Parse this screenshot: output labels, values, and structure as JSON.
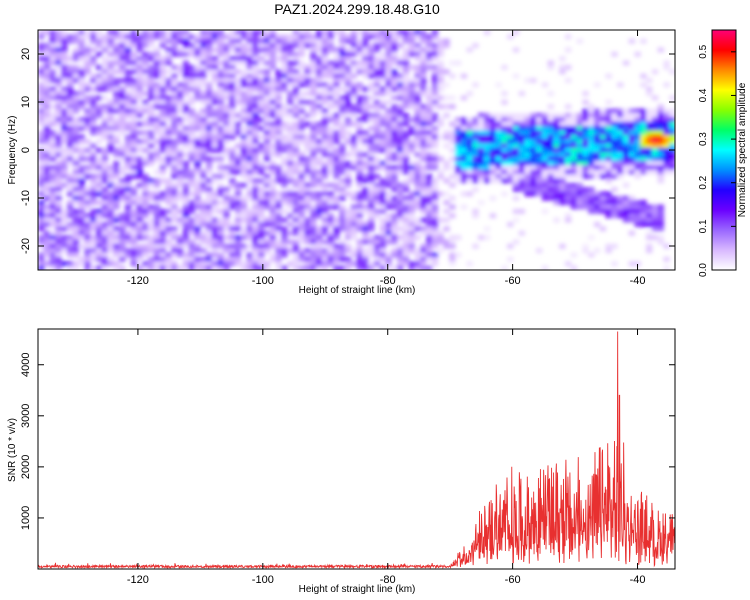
{
  "chart_data": [
    {
      "type": "heatmap",
      "title": "PAZ1.2024.299.18.48.G10",
      "xlabel": "Height of straight line (km)",
      "ylabel": "Frequency (Hz)",
      "xlim": [
        -136,
        -34
      ],
      "ylim": [
        -25,
        25
      ],
      "xticks": [
        "-120",
        "-100",
        "-80",
        "-60",
        "-40"
      ],
      "yticks": [
        "20",
        "10",
        "0",
        "-10",
        "-20"
      ],
      "colorbar": {
        "label": "Normalized spectral amplitude",
        "range": [
          0.0,
          0.55
        ],
        "ticks": [
          "0.0",
          "0.1",
          "0.2",
          "0.3",
          "0.4",
          "0.5"
        ],
        "colors": [
          "#ffffff",
          "#d8b8ff",
          "#9966ff",
          "#6a00ff",
          "#2200ff",
          "#0090ff",
          "#00ffff",
          "#00ff66",
          "#88ff00",
          "#ffff00",
          "#ff8800",
          "#ff0000",
          "#ff0077"
        ]
      },
      "regions": [
        {
          "name": "noise",
          "x": [
            -136,
            -70
          ],
          "y": [
            -25,
            25
          ],
          "level": 0.08
        },
        {
          "name": "signal",
          "x": [
            -70,
            -34
          ],
          "y_start": [
            -70,
            0
          ],
          "y_end": [
            -34,
            2
          ],
          "peak": 0.55,
          "peak_at": [
            -37,
            2
          ]
        }
      ],
      "grid": false
    },
    {
      "type": "line",
      "title": "",
      "xlabel": "Height of straight line (km)",
      "ylabel": "SNR (10 * v/v)",
      "xlim": [
        -136,
        -34
      ],
      "ylim": [
        0,
        4700
      ],
      "xticks": [
        "-120",
        "-100",
        "-80",
        "-60",
        "-40"
      ],
      "yticks": [
        "4000",
        "3000",
        "2000",
        "1000"
      ],
      "series": [
        {
          "color": "#e83030",
          "profile": [
            {
              "x": -136,
              "base": 80,
              "amp": 60
            },
            {
              "x": -70,
              "base": 80,
              "amp": 60
            },
            {
              "x": -67,
              "base": 250,
              "amp": 350
            },
            {
              "x": -63,
              "base": 600,
              "amp": 1300
            },
            {
              "x": -55,
              "base": 650,
              "amp": 1700
            },
            {
              "x": -48,
              "base": 650,
              "amp": 1600
            },
            {
              "x": -44,
              "base": 700,
              "amp": 2600
            },
            {
              "x": -40,
              "base": 500,
              "amp": 1200
            },
            {
              "x": -34,
              "base": 450,
              "amp": 700
            }
          ],
          "peak": {
            "x": -43.2,
            "y": 4650
          }
        }
      ],
      "grid": false
    }
  ]
}
